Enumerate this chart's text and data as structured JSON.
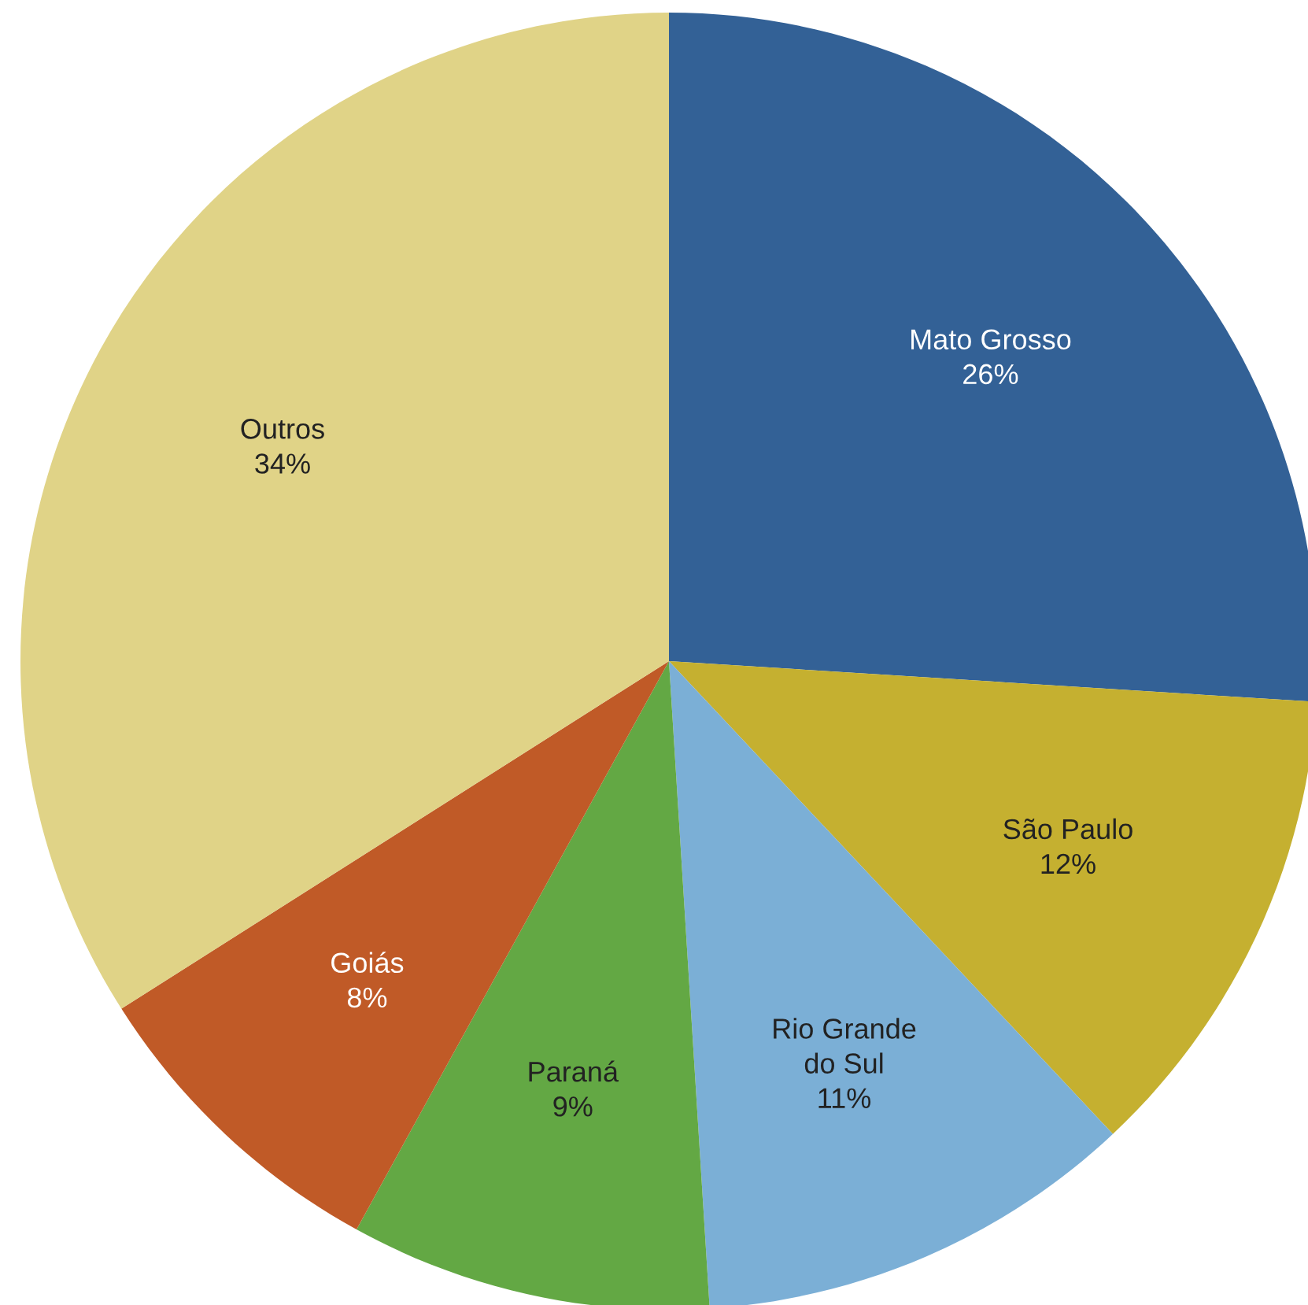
{
  "chart_data": {
    "type": "pie",
    "categories": [
      "Mato Grosso",
      "São Paulo",
      "Rio Grande do Sul",
      "Paraná",
      "Goiás",
      "Outros"
    ],
    "values": [
      26,
      12,
      11,
      9,
      8,
      34
    ],
    "colors": [
      "#336196",
      "#c5b030",
      "#7bafd6",
      "#63a844",
      "#c05a27",
      "#e0d387"
    ],
    "value_labels": [
      "26%",
      "12%",
      "11%",
      "9%",
      "8%",
      "34%"
    ]
  }
}
